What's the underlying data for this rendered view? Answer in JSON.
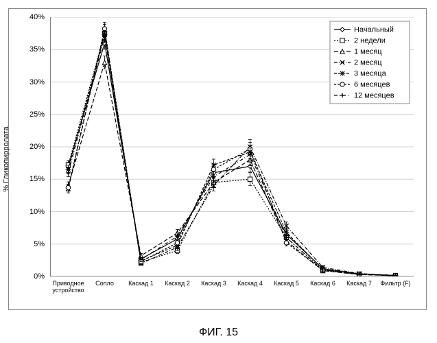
{
  "caption": "ФИГ. 15",
  "ylabel": "% Гликопирролата",
  "chart": {
    "type": "line",
    "background_color": "#ffffff",
    "border_color": "#888888",
    "ylim": [
      0,
      40
    ],
    "ytick_step": 5,
    "ytick_suffix": "%",
    "grid_color": "#d0d0d0",
    "grid": true,
    "categories": [
      "Приводное\nустройство",
      "Сопло",
      "Каскад 1",
      "Каскад 2",
      "Каскад 3",
      "Каскад 4",
      "Каскад 5",
      "Каскад 6",
      "Каскад 7",
      "Фильтр (F)"
    ],
    "legend": {
      "position": "top-right",
      "border_color": "#888888",
      "bg": "#ffffff",
      "fontsize": 11
    },
    "label_fontsize": 11,
    "tick_fontsize": 9,
    "series": [
      {
        "name": "Начальный",
        "values": [
          17.0,
          36.0,
          2.7,
          5.8,
          16.0,
          17.0,
          6.5,
          1.2,
          0.4,
          0.15
        ],
        "errors": [
          0.6,
          0.9,
          0.35,
          0.5,
          0.9,
          0.9,
          0.5,
          0.3,
          0.15,
          0.08
        ],
        "color": "#000000",
        "dash": "",
        "marker": "diamond"
      },
      {
        "name": "2 недели",
        "values": [
          17.2,
          37.5,
          2.2,
          4.0,
          14.5,
          15.0,
          6.0,
          1.0,
          0.35,
          0.12
        ],
        "errors": [
          0.7,
          0.9,
          0.3,
          0.45,
          0.8,
          1.0,
          0.5,
          0.25,
          0.12,
          0.07
        ],
        "color": "#000000",
        "dash": "2,2",
        "marker": "square-open"
      },
      {
        "name": "1 месяц",
        "values": [
          14.0,
          33.0,
          3.2,
          6.7,
          14.5,
          18.0,
          5.5,
          0.9,
          0.3,
          0.1
        ],
        "errors": [
          0.6,
          1.0,
          0.35,
          0.55,
          0.8,
          0.9,
          0.5,
          0.25,
          0.12,
          0.07
        ],
        "color": "#000000",
        "dash": "6,3",
        "marker": "triangle-open"
      },
      {
        "name": "2 месяц",
        "values": [
          13.5,
          38.0,
          2.0,
          4.5,
          14.0,
          20.0,
          7.8,
          1.4,
          0.45,
          0.18
        ],
        "errors": [
          0.6,
          0.9,
          0.3,
          0.5,
          0.8,
          1.1,
          0.6,
          0.3,
          0.15,
          0.08
        ],
        "color": "#000000",
        "dash": "5,2,1,2",
        "marker": "x"
      },
      {
        "name": "3 месяца",
        "values": [
          16.5,
          37.3,
          2.4,
          4.8,
          17.2,
          19.2,
          6.8,
          1.1,
          0.38,
          0.14
        ],
        "errors": [
          0.65,
          0.9,
          0.3,
          0.5,
          0.9,
          1.0,
          0.55,
          0.28,
          0.14,
          0.07
        ],
        "color": "#000000",
        "dash": "4,2",
        "marker": "star"
      },
      {
        "name": "6 месяцев",
        "values": [
          13.7,
          38.2,
          2.3,
          5.2,
          16.5,
          19.7,
          5.2,
          0.95,
          0.32,
          0.12
        ],
        "errors": [
          0.55,
          1.0,
          0.3,
          0.5,
          0.85,
          1.0,
          0.5,
          0.25,
          0.12,
          0.07
        ],
        "color": "#000000",
        "dash": "3,2",
        "marker": "circle-open"
      },
      {
        "name": "12 месяцев",
        "values": [
          16.0,
          37.0,
          2.6,
          6.2,
          15.4,
          18.8,
          6.0,
          1.0,
          0.35,
          0.13
        ],
        "errors": [
          0.6,
          0.95,
          0.32,
          0.5,
          0.85,
          1.0,
          0.5,
          0.25,
          0.13,
          0.07
        ],
        "color": "#000000",
        "dash": "5,3,1,3",
        "marker": "plus"
      }
    ]
  }
}
